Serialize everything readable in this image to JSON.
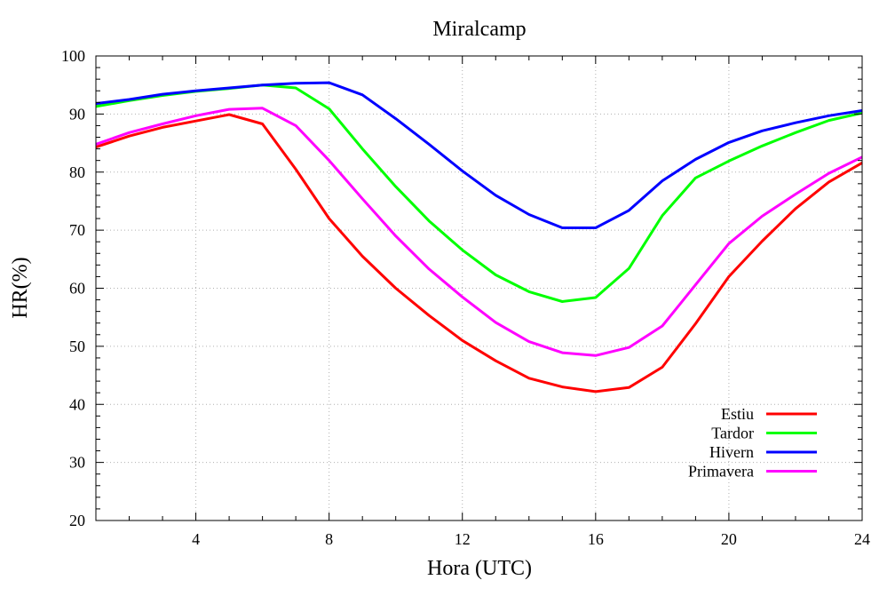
{
  "chart_data": {
    "type": "line",
    "title": "Miralcamp",
    "xlabel": "Hora (UTC)",
    "ylabel": "HR(%)",
    "xlim": [
      1,
      24
    ],
    "ylim": [
      20,
      100
    ],
    "xticks": [
      4,
      8,
      12,
      16,
      20,
      24
    ],
    "yticks": [
      20,
      30,
      40,
      50,
      60,
      70,
      80,
      90,
      100
    ],
    "grid": true,
    "legend_position": "bottom-right",
    "x": [
      1,
      2,
      3,
      4,
      5,
      6,
      7,
      8,
      9,
      10,
      11,
      12,
      13,
      14,
      15,
      16,
      17,
      18,
      19,
      20,
      21,
      22,
      23,
      24
    ],
    "series": [
      {
        "name": "Estiu",
        "color": "#ff0000",
        "values": [
          84.3,
          86.2,
          87.7,
          88.8,
          89.9,
          88.3,
          80.5,
          72.0,
          65.5,
          60.0,
          55.3,
          51.0,
          47.5,
          44.5,
          43.0,
          42.2,
          42.9,
          46.4,
          53.9,
          62.0,
          68.1,
          73.7,
          78.3,
          81.6
        ]
      },
      {
        "name": "Tardor",
        "color": "#00ff00",
        "values": [
          91.3,
          92.3,
          93.2,
          93.9,
          94.4,
          95.0,
          94.5,
          90.9,
          84.0,
          77.5,
          71.6,
          66.6,
          62.3,
          59.4,
          57.7,
          58.4,
          63.4,
          72.5,
          79.0,
          81.9,
          84.5,
          86.8,
          88.9,
          90.2
        ]
      },
      {
        "name": "Hivern",
        "color": "#0000ff",
        "values": [
          91.8,
          92.5,
          93.4,
          94.0,
          94.5,
          95.0,
          95.3,
          95.4,
          93.3,
          89.2,
          84.8,
          80.2,
          76.0,
          72.7,
          70.4,
          70.4,
          73.4,
          78.5,
          82.2,
          85.1,
          87.1,
          88.5,
          89.7,
          90.6
        ]
      },
      {
        "name": "Primavera",
        "color": "#ff00ff",
        "values": [
          84.8,
          86.8,
          88.3,
          89.7,
          90.8,
          91.0,
          88.0,
          82.0,
          75.4,
          69.0,
          63.3,
          58.5,
          54.1,
          50.8,
          48.9,
          48.4,
          49.8,
          53.5,
          60.6,
          67.7,
          72.4,
          76.2,
          79.8,
          82.6
        ]
      }
    ]
  }
}
